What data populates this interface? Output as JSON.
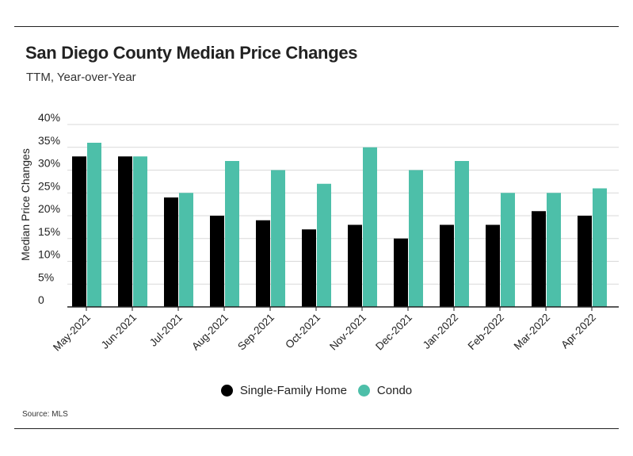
{
  "title": "San Diego County Median Price Changes",
  "subtitle": "TTM, Year-over-Year",
  "source": "Source:  MLS",
  "colors": {
    "single_family": "#000000",
    "condo": "#4dbfa9",
    "grid": "#d9d9d9",
    "axis": "#222222"
  },
  "chart_data": {
    "type": "bar",
    "title": "San Diego County Median Price Changes",
    "subtitle": "TTM, Year-over-Year",
    "xlabel": "",
    "ylabel": "Median Price Changes",
    "ylim": [
      0,
      40
    ],
    "yticks": [
      0,
      5,
      10,
      15,
      20,
      25,
      30,
      35,
      40
    ],
    "ytick_labels": [
      "0",
      "5%",
      "10%",
      "15%",
      "20%",
      "25%",
      "30%",
      "35%",
      "40%"
    ],
    "grid": true,
    "legend_position": "bottom",
    "categories": [
      "May-2021",
      "Jun-2021",
      "Jul-2021",
      "Aug-2021",
      "Sep-2021",
      "Oct-2021",
      "Nov-2021",
      "Dec-2021",
      "Jan-2022",
      "Feb-2022",
      "Mar-2022",
      "Apr-2022"
    ],
    "series": [
      {
        "name": "Single-Family Home",
        "values": [
          33,
          33,
          24,
          20,
          19,
          17,
          18,
          15,
          18,
          18,
          21,
          20
        ]
      },
      {
        "name": "Condo",
        "values": [
          36,
          33,
          25,
          32,
          30,
          27,
          35,
          30,
          32,
          25,
          25,
          26
        ]
      }
    ]
  }
}
